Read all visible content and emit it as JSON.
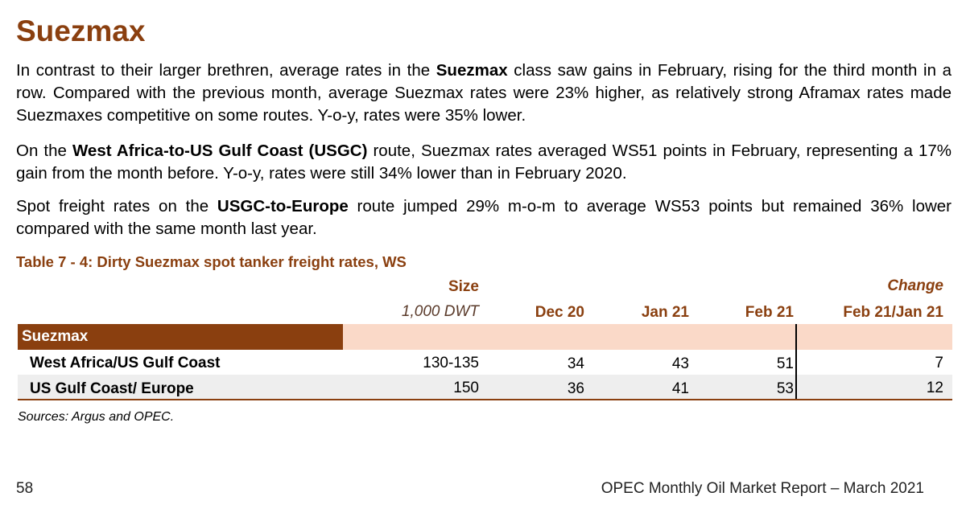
{
  "heading": "Suezmax",
  "paragraphs": {
    "p1": {
      "t1": "In contrast to their larger brethren, average rates in the ",
      "b1": "Suezmax",
      "t2": " class saw gains in February, rising for the third month in a row. Compared with the previous month, average Suezmax rates were 23% higher, as relatively strong Aframax rates made Suezmaxes competitive on some routes. Y-o-y, rates were 35% lower."
    },
    "p2": {
      "t1": "On the ",
      "b1": "West Africa-to-US Gulf Coast (USGC)",
      "t2": " route, Suezmax rates averaged WS51 points in February, representing a 17% gain from the month before. Y-o-y, rates were still 34% lower than in February 2020."
    },
    "p3": {
      "t1": "Spot freight rates on the ",
      "b1": "USGC-to-Europe",
      "t2": " route jumped 29% m-o-m to average WS53 points but remained 36% lower compared with the same month last year."
    }
  },
  "table": {
    "title": "Table 7 - 4: Dirty Suezmax spot tanker freight rates, WS",
    "headers": {
      "size": "Size",
      "size_unit": "1,000 DWT",
      "dec20": "Dec 20",
      "jan21": "Jan 21",
      "feb21": "Feb 21",
      "change": "Change",
      "change_period": "Feb 21/Jan 21"
    },
    "section": "Suezmax",
    "rows": [
      {
        "route": "West Africa/US Gulf Coast",
        "size": "130-135",
        "dec20": "34",
        "jan21": "43",
        "feb21": "51",
        "change": "7"
      },
      {
        "route": "US Gulf Coast/ Europe",
        "size": "150",
        "dec20": "36",
        "jan21": "41",
        "feb21": "53",
        "change": "12"
      }
    ],
    "sources": "Sources: Argus and OPEC."
  },
  "footer": {
    "page_number": "58",
    "report": "OPEC Monthly Oil Market Report – March 2021"
  },
  "colors": {
    "accent_brown": "#8a3f0f",
    "band_light": "#fad9c8",
    "row_alt": "#eeeeee"
  }
}
